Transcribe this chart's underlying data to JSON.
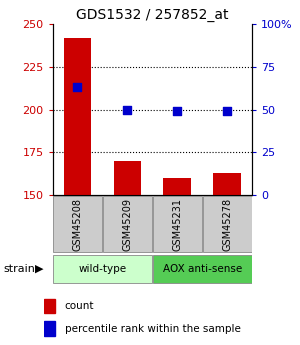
{
  "title": "GDS1532 / 257852_at",
  "samples": [
    "GSM45208",
    "GSM45209",
    "GSM45231",
    "GSM45278"
  ],
  "bar_values": [
    242,
    170,
    160,
    163
  ],
  "dot_values": [
    63,
    50,
    49,
    49
  ],
  "ylim_left": [
    150,
    250
  ],
  "ylim_right": [
    0,
    100
  ],
  "yticks_left": [
    150,
    175,
    200,
    225,
    250
  ],
  "yticks_right": [
    0,
    25,
    50,
    75,
    100
  ],
  "bar_color": "#cc0000",
  "dot_color": "#0000cc",
  "bar_width": 0.55,
  "groups": [
    {
      "label": "wild-type",
      "indices": [
        0,
        1
      ],
      "color": "#ccffcc"
    },
    {
      "label": "AOX anti-sense",
      "indices": [
        2,
        3
      ],
      "color": "#55cc55"
    }
  ],
  "strain_label": "strain",
  "legend_items": [
    {
      "color": "#cc0000",
      "label": "count"
    },
    {
      "color": "#0000cc",
      "label": "percentile rank within the sample"
    }
  ],
  "title_fontsize": 10,
  "axis_label_color_left": "#cc0000",
  "axis_label_color_right": "#0000cc",
  "sample_box_color": "#cccccc",
  "grid_dotted_values": [
    175,
    200,
    225
  ]
}
